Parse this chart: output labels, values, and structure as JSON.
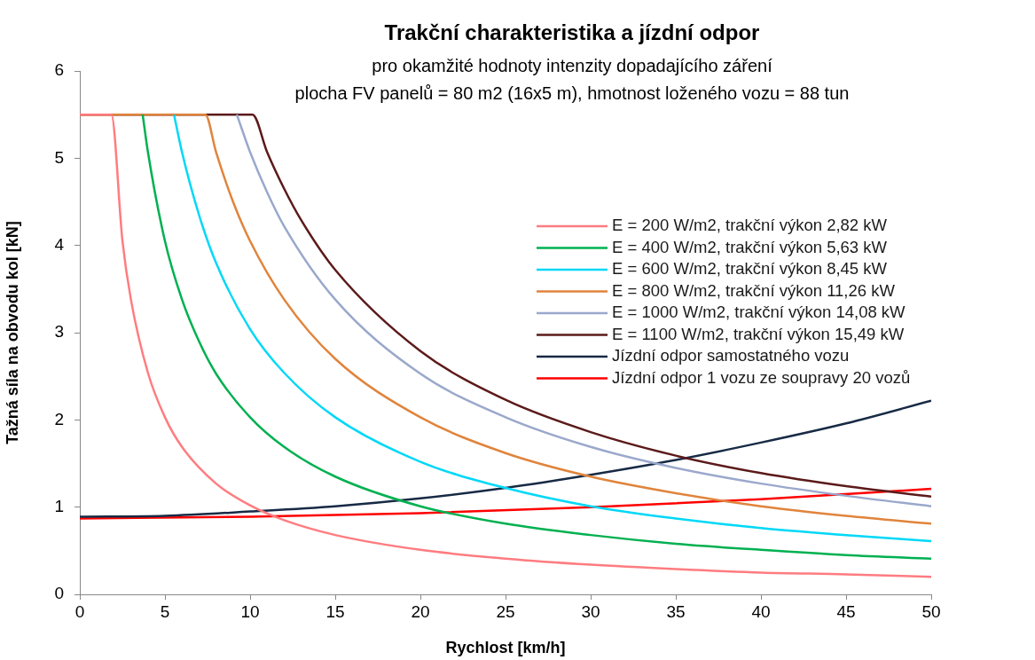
{
  "chart_data": {
    "type": "line",
    "title": "Trakční charakteristika a jízdní odpor",
    "subtitle": [
      "pro okamžité hodnoty intenzity dopadajícího záření",
      "plocha FV panelů = 80 m2 (16x5 m), hmotnost loženého vozu = 88 tun"
    ],
    "xlabel": "Rychlost [km/h]",
    "ylabel": "Tažná síla na obvodu kol [kN]",
    "xlim": [
      0,
      50
    ],
    "ylim": [
      0,
      6
    ],
    "xticks": [
      0,
      5,
      10,
      15,
      20,
      25,
      30,
      35,
      40,
      45,
      50
    ],
    "yticks": [
      0,
      1,
      2,
      3,
      4,
      5,
      6
    ],
    "grid": false,
    "legend": "right",
    "marker": "none",
    "line_style": "solid",
    "series": [
      {
        "name": "E = 200 W/m2, trakční výkon 2,82 kW",
        "color": "#ff7c80",
        "x": [
          0,
          1.85,
          2.5,
          3,
          4,
          5,
          6,
          8,
          10,
          12,
          15,
          20,
          25,
          30,
          35,
          40,
          45,
          50
        ],
        "values": [
          5.5,
          5.5,
          4.06,
          3.38,
          2.54,
          2.03,
          1.69,
          1.27,
          1.02,
          0.85,
          0.68,
          0.51,
          0.41,
          0.34,
          0.29,
          0.25,
          0.23,
          0.2
        ]
      },
      {
        "name": "E = 400 W/m2, trakční výkon 5,63 kW",
        "color": "#00b050",
        "x": [
          3.69,
          4,
          5,
          6,
          7,
          8,
          10,
          12,
          15,
          20,
          25,
          30,
          35,
          40,
          45,
          50
        ],
        "values": [
          5.5,
          5.07,
          4.05,
          3.38,
          2.9,
          2.53,
          2.03,
          1.69,
          1.35,
          1.01,
          0.81,
          0.68,
          0.58,
          0.51,
          0.45,
          0.41
        ]
      },
      {
        "name": "E = 600 W/m2, trakční výkon 8,45 kW",
        "color": "#00d8f8",
        "x": [
          5.53,
          6,
          7,
          8,
          10,
          12,
          15,
          20,
          25,
          30,
          35,
          40,
          45,
          50
        ],
        "values": [
          5.5,
          5.07,
          4.35,
          3.8,
          3.04,
          2.54,
          2.03,
          1.52,
          1.22,
          1.01,
          0.87,
          0.76,
          0.68,
          0.61
        ]
      },
      {
        "name": "E = 800 W/m2, trakční výkon 11,26 kW",
        "color": "#e0843c",
        "x": [
          0,
          7.37,
          8,
          9,
          10,
          12,
          15,
          20,
          25,
          30,
          35,
          40,
          45,
          50
        ],
        "values": [
          5.5,
          5.5,
          5.07,
          4.5,
          4.05,
          3.38,
          2.7,
          2.03,
          1.62,
          1.35,
          1.16,
          1.01,
          0.9,
          0.81
        ]
      },
      {
        "name": "E = 1000 W/m2, trakční výkon 14,08 kW",
        "color": "#9aa8cc",
        "x": [
          9.22,
          10,
          11,
          12,
          15,
          20,
          25,
          30,
          35,
          40,
          45,
          50
        ],
        "values": [
          5.5,
          5.07,
          4.61,
          4.22,
          3.38,
          2.53,
          2.03,
          1.69,
          1.45,
          1.27,
          1.13,
          1.01
        ]
      },
      {
        "name": "E = 1100 W/m2, trakční výkon 15,49 kW",
        "color": "#5c1a1a",
        "x": [
          0,
          10.14,
          11,
          12,
          13,
          15,
          20,
          25,
          30,
          35,
          40,
          45,
          50
        ],
        "values": [
          5.5,
          5.5,
          5.07,
          4.65,
          4.29,
          3.72,
          2.79,
          2.23,
          1.86,
          1.59,
          1.39,
          1.24,
          1.12
        ]
      },
      {
        "name": "Jízdní odpor samostatného vozu",
        "color": "#172a45",
        "x": [
          0,
          5,
          10,
          15,
          20,
          25,
          30,
          35,
          40,
          45,
          50
        ],
        "values": [
          0.89,
          0.9,
          0.95,
          1.01,
          1.1,
          1.22,
          1.37,
          1.54,
          1.74,
          1.96,
          2.22
        ]
      },
      {
        "name": "Jízdní odpor 1 vozu ze soupravy 20 vozů",
        "color": "#ff0000",
        "x": [
          0,
          10,
          20,
          30,
          40,
          50
        ],
        "values": [
          0.87,
          0.89,
          0.93,
          1.0,
          1.09,
          1.21
        ]
      }
    ]
  }
}
